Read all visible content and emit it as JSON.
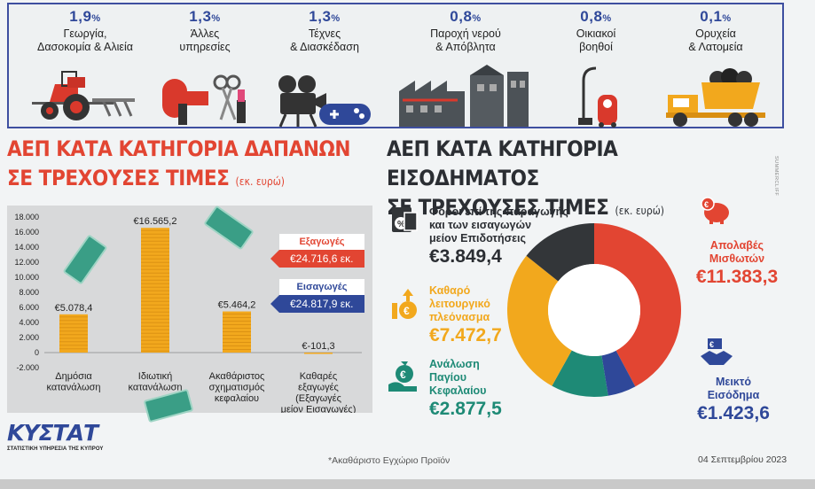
{
  "sectors": [
    {
      "pct": "1,9",
      "pct_sign": "%",
      "line1": "Γεωργία,",
      "line2": "Δασοκομία & Αλιεία",
      "icon": "tractor-icon"
    },
    {
      "pct": "1,3",
      "pct_sign": "%",
      "line1": "Άλλες",
      "line2": "υπηρεσίες",
      "icon": "hairdryer-scissors-icon"
    },
    {
      "pct": "1,3",
      "pct_sign": "%",
      "line1": "Τέχνες",
      "line2": "& Διασκέδαση",
      "icon": "camera-gamepad-icon"
    },
    {
      "pct": "0,8",
      "pct_sign": "%",
      "line1": "Παροχή νερού",
      "line2": "& Απόβλητα",
      "icon": "factory-icon"
    },
    {
      "pct": "0,8",
      "pct_sign": "%",
      "line1": "Οικιακοί",
      "line2": "βοηθοί",
      "icon": "vacuum-icon"
    },
    {
      "pct": "0,1",
      "pct_sign": "%",
      "line1": "Ορυχεία",
      "line2": "& Λατομεία",
      "icon": "dump-truck-icon"
    }
  ],
  "left_title": {
    "line1": "ΑΕΠ ΚΑΤΑ ΚΑΤΗΓΟΡΙΑ ΔΑΠΑΝΩΝ",
    "line2": "ΣΕ ΤΡΕΧΟΥΣΕΣ ΤΙΜΕΣ",
    "unit": "(εκ. ευρώ)"
  },
  "right_title": {
    "line1": "ΑΕΠ ΚΑΤΑ ΚΑΤΗΓΟΡΙΑ ΕΙΣΟΔΗΜΑΤΟΣ",
    "line2": "ΣΕ ΤΡΕΧΟΥΣΕΣ ΤΙΜΕΣ",
    "unit": "(εκ. ευρώ)"
  },
  "trade": {
    "exports_label": "Εξαγωγές",
    "exports_value": "€24.716,6 εκ.",
    "imports_label": "Εισαγωγές",
    "imports_value": "€24.817,9 εκ."
  },
  "income_labels": {
    "taxes": {
      "lines": [
        "Φόροι επί της παραγωγής",
        "και των εισαγωγών",
        "μείον Επιδοτήσεις"
      ],
      "amount": "€3.849,4"
    },
    "comp": {
      "lines": [
        "Απολαβές",
        "Μισθωτών"
      ],
      "amount": "€11.383,3"
    },
    "surplus": {
      "lines": [
        "Καθαρό",
        "λειτουργικό",
        "πλεόνασμα"
      ],
      "amount": "€7.472,7"
    },
    "capital": {
      "lines": [
        "Ανάλωση",
        "Παγίου",
        "Κεφαλαίου"
      ],
      "amount": "€2.877,5"
    },
    "mixed": {
      "lines": [
        "Μεικτό",
        "Εισόδημα"
      ],
      "amount": "€1.423,6"
    }
  },
  "footer": {
    "note": "*Ακαθάριστο Εγχώριο Προϊόν",
    "date": "04 Σεπτεμβρίου 2023",
    "logo_text": "ΚΥΣΤΑΤ",
    "logo_sub": "ΣΤΑΤΙΣΤΙΚΗ ΥΠΗΡΕΣΙΑ ΤΗΣ ΚΥΠΡΟΥ",
    "credit": "SUMMERCLIFF"
  },
  "colors": {
    "red": "#e24532",
    "blue": "#2f4899",
    "gold": "#f2a81d",
    "teal": "#1e8a76",
    "dark": "#333639"
  },
  "chart_data": [
    {
      "type": "bar",
      "categories": [
        [
          "Δημόσια",
          "κατανάλωση"
        ],
        [
          "Ιδιωτική",
          "κατανάλωση"
        ],
        [
          "Ακαθάριστος",
          "σχηματισμός",
          "κεφαλαίου"
        ],
        [
          "Καθαρές",
          "εξαγωγές",
          "(Εξαγωγές",
          "μείον Εισαγωγές)"
        ]
      ],
      "values": [
        5078.4,
        16565.2,
        5464.2,
        -101.3
      ],
      "value_labels": [
        "€5.078,4",
        "€16.565,2",
        "€5.464,2",
        "€-101,3"
      ],
      "yticks": [
        18000,
        16000,
        14000,
        12000,
        10000,
        8000,
        6000,
        4000,
        2000,
        0,
        -2000
      ],
      "ytick_labels": [
        "18.000",
        "16.000",
        "14.000",
        "12.000",
        "10.000",
        "8.000",
        "6.000",
        "4.000",
        "2.000",
        "0",
        "-2.000"
      ],
      "ylim": [
        -2000,
        18000
      ]
    },
    {
      "type": "pie",
      "slices": [
        {
          "label": "Απολαβές Μισθωτών",
          "value": 11383.3,
          "color": "#e24532"
        },
        {
          "label": "Μεικτό Εισόδημα",
          "value": 1423.6,
          "color": "#2f4899"
        },
        {
          "label": "Ανάλωση Παγίου Κεφαλαίου",
          "value": 2877.5,
          "color": "#1e8a76"
        },
        {
          "label": "Καθαρό λειτουργικό πλεόνασμα",
          "value": 7472.7,
          "color": "#f2a81d"
        },
        {
          "label": "Φόροι επί της παραγωγής και των εισαγωγών μείον Επιδοτήσεις",
          "value": 3849.4,
          "color": "#333639"
        }
      ]
    }
  ]
}
